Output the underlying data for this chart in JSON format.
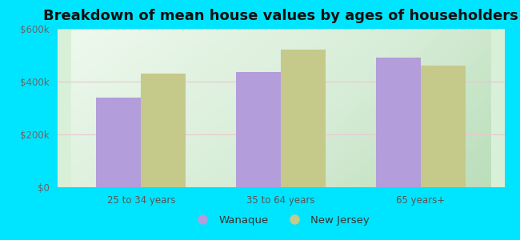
{
  "title": "Breakdown of mean house values by ages of householders",
  "categories": [
    "25 to 34 years",
    "35 to 64 years",
    "65 years+"
  ],
  "wanaque_values": [
    340000,
    435000,
    490000
  ],
  "nj_values": [
    430000,
    520000,
    460000
  ],
  "wanaque_color": "#b39ddb",
  "nj_color": "#c5c98a",
  "background_outer": "#00e5ff",
  "ylim": [
    0,
    600000
  ],
  "yticks": [
    0,
    200000,
    400000,
    600000
  ],
  "ytick_labels": [
    "$0",
    "$200k",
    "$400k",
    "$600k"
  ],
  "legend_labels": [
    "Wanaque",
    "New Jersey"
  ],
  "bar_width": 0.32,
  "title_fontsize": 13,
  "tick_fontsize": 8.5,
  "legend_fontsize": 9.5
}
